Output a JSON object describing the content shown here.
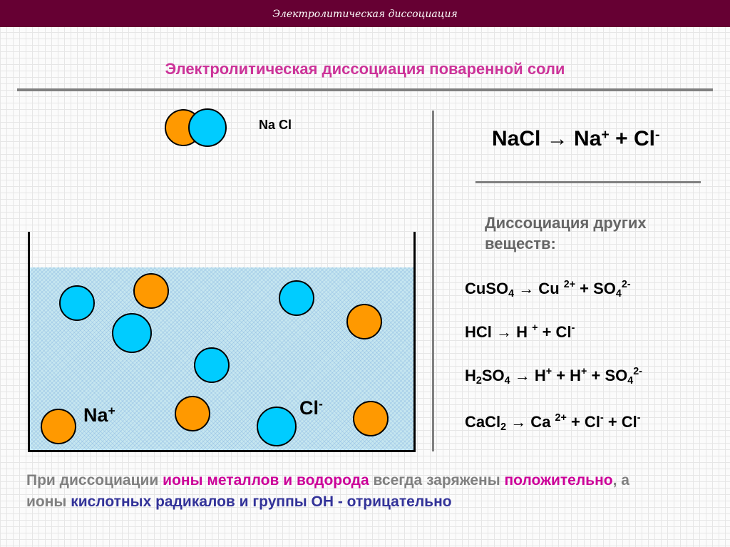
{
  "header": {
    "title": "Электролитическая диссоциация"
  },
  "slide_title": "Электролитическая диссоциация поваренной соли",
  "molecule_label": "Na Cl",
  "colors": {
    "na": "#ff9900",
    "cl": "#00ccff",
    "header": "#660033",
    "title": "#cc3399",
    "pink": "#cc0099",
    "navy": "#333399",
    "gray": "#808080"
  },
  "ion_labels": {
    "na": "Na",
    "na_charge": "+",
    "cl": "Cl",
    "cl_charge": "-"
  },
  "main_equation": [
    [
      "t",
      "NaCl "
    ],
    [
      "t",
      "→ Na"
    ],
    [
      "sup",
      "+"
    ],
    [
      "t",
      " + Cl"
    ],
    [
      "sup",
      "-"
    ]
  ],
  "others_heading": "Диссоциация других веществ:",
  "equations": [
    [
      [
        "t",
        "CuSO"
      ],
      [
        "sub",
        "4"
      ],
      [
        "t",
        " → Cu "
      ],
      [
        "sup",
        "2+"
      ],
      [
        "t",
        " + SO"
      ],
      [
        "sub",
        "4"
      ],
      [
        "sup",
        "2-"
      ]
    ],
    [
      [
        "t",
        "HCl → H "
      ],
      [
        "sup",
        "+"
      ],
      [
        "t",
        " + Cl"
      ],
      [
        "sup",
        "-"
      ]
    ],
    [
      [
        "t",
        "H"
      ],
      [
        "sub",
        "2"
      ],
      [
        "t",
        "SO"
      ],
      [
        "sub",
        "4"
      ],
      [
        "t",
        " → H"
      ],
      [
        "sup",
        "+"
      ],
      [
        "t",
        " + H"
      ],
      [
        "sup",
        "+"
      ],
      [
        "t",
        " + SO"
      ],
      [
        "sub",
        "4"
      ],
      [
        "sup",
        "2-"
      ]
    ],
    [
      [
        "t",
        "CaCl"
      ],
      [
        "sub",
        "2"
      ],
      [
        "t",
        " → Ca "
      ],
      [
        "sup",
        "2+"
      ],
      [
        "t",
        " + Cl"
      ],
      [
        "sup",
        "-"
      ],
      [
        "t",
        " + Cl"
      ],
      [
        "sup",
        "-"
      ]
    ]
  ],
  "bottom_text": [
    {
      "text": " При диссоциации ",
      "color": "gray"
    },
    {
      "text": "ионы металлов и водорода",
      "color": "pink"
    },
    {
      "text": " всегда заряжены ",
      "color": "gray"
    },
    {
      "text": "положительно",
      "color": "pink"
    },
    {
      "text": ", а ионы ",
      "color": "gray"
    },
    {
      "text": "кислотных радикалов и группы ОН - отрицательно",
      "color": "navy"
    }
  ]
}
